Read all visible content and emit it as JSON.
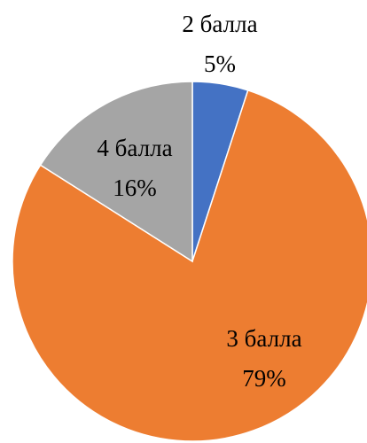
{
  "chart_data": {
    "type": "pie",
    "categories": [
      "2 балла",
      "3 балла",
      "4 балла"
    ],
    "values": [
      5,
      79,
      16
    ],
    "value_labels": [
      "5%",
      "79%",
      "16%"
    ],
    "colors": [
      "#4472c4",
      "#ed7d31",
      "#a5a5a5"
    ]
  }
}
